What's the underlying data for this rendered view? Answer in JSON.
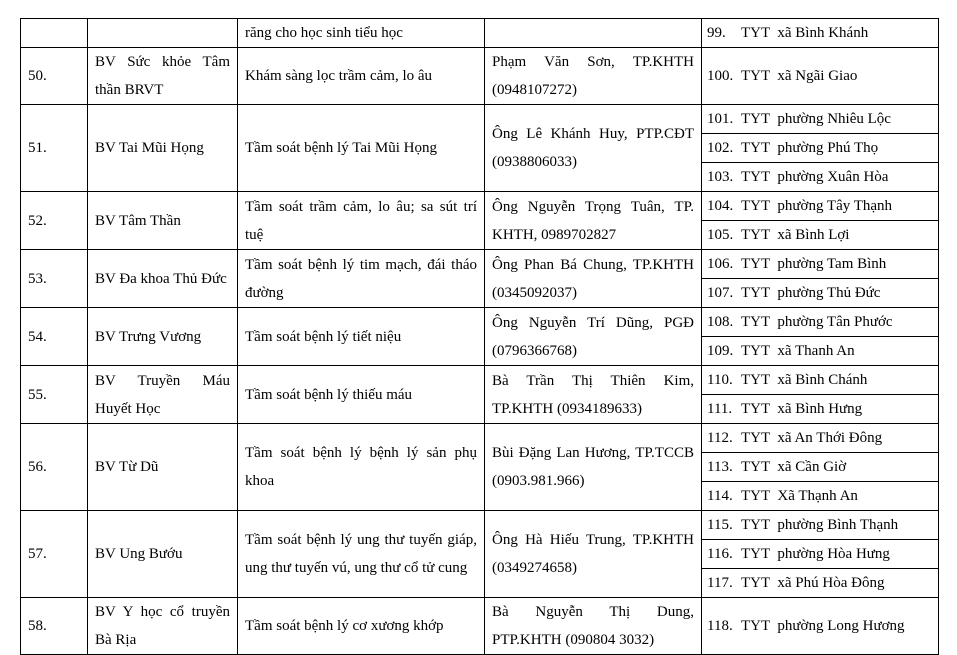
{
  "table": {
    "rows": [
      {
        "stt": "",
        "hospital": "",
        "service": "răng cho học sinh tiểu học",
        "contact": "",
        "stations": [
          {
            "num": "99.",
            "name": "TYT  xã Bình Khánh"
          }
        ]
      },
      {
        "stt": "50.",
        "hospital": "BV Sức khỏe Tâm thần BRVT",
        "service": "Khám sàng lọc trầm cảm, lo âu",
        "contact": "Phạm Văn Sơn, TP.KHTH (0948107272)",
        "stations": [
          {
            "num": "100.",
            "name": "TYT  xã Ngãi Giao"
          }
        ]
      },
      {
        "stt": "51.",
        "hospital": "BV Tai Mũi Họng",
        "service": "Tầm soát bệnh lý Tai Mũi Họng",
        "contact": "Ông Lê Khánh Huy, PTP.CĐT (0938806033)",
        "stations": [
          {
            "num": "101.",
            "name": "TYT  phường Nhiêu Lộc"
          },
          {
            "num": "102.",
            "name": "TYT  phường Phú Thọ"
          },
          {
            "num": "103.",
            "name": "TYT  phường Xuân Hòa"
          }
        ]
      },
      {
        "stt": "52.",
        "hospital": "BV Tâm Thần",
        "service": "Tầm soát trầm cảm, lo âu; sa sút trí tuệ",
        "contact": "Ông Nguyễn Trọng Tuân, TP. KHTH, 0989702827",
        "stations": [
          {
            "num": "104.",
            "name": "TYT  phường Tây Thạnh"
          },
          {
            "num": "105.",
            "name": "TYT  xã Bình Lợi"
          }
        ]
      },
      {
        "stt": "53.",
        "hospital": "BV Đa khoa Thủ Đức",
        "service": "Tầm soát bệnh lý tim mạch, đái tháo đường",
        "contact": "Ông Phan Bá Chung, TP.KHTH (0345092037)",
        "stations": [
          {
            "num": "106.",
            "name": "TYT  phường Tam Bình"
          },
          {
            "num": "107.",
            "name": "TYT  phường Thủ Đức"
          }
        ]
      },
      {
        "stt": "54.",
        "hospital": "BV Trưng Vương",
        "service": "Tầm soát bệnh lý tiết niệu",
        "contact": "Ông Nguyễn Trí Dũng, PGĐ (0796366768)",
        "stations": [
          {
            "num": "108.",
            "name": "TYT  phường Tân Phước"
          },
          {
            "num": "109.",
            "name": "TYT  xã Thanh An"
          }
        ]
      },
      {
        "stt": "55.",
        "hospital": "BV Truyền Máu Huyết Học",
        "service": "Tầm soát bệnh lý thiếu máu",
        "contact": "Bà Trần Thị Thiên Kim, TP.KHTH (0934189633)",
        "stations": [
          {
            "num": "110.",
            "name": "TYT  xã Bình Chánh"
          },
          {
            "num": "111.",
            "name": "TYT  xã Bình Hưng"
          }
        ]
      },
      {
        "stt": "56.",
        "hospital": "BV Từ Dũ",
        "service": "Tầm soát bệnh lý bệnh lý sản phụ khoa",
        "contact": "Bùi Đặng Lan Hương, TP.TCCB (0903.981.966)",
        "stations": [
          {
            "num": "112.",
            "name": "TYT  xã An Thới Đông"
          },
          {
            "num": "113.",
            "name": "TYT  xã Cần Giờ"
          },
          {
            "num": "114.",
            "name": "TYT  Xã Thạnh An"
          }
        ]
      },
      {
        "stt": "57.",
        "hospital": "BV Ung Bướu",
        "service": "Tầm soát bệnh lý ung thư tuyến giáp, ung thư tuyến vú, ung thư cổ tử cung",
        "contact": "Ông Hà Hiếu Trung, TP.KHTH (0349274658)",
        "stations": [
          {
            "num": "115.",
            "name": "TYT  phường Bình Thạnh"
          },
          {
            "num": "116.",
            "name": "TYT  phường Hòa Hưng"
          },
          {
            "num": "117.",
            "name": "TYT  xã Phú Hòa Đông"
          }
        ]
      },
      {
        "stt": "58.",
        "hospital": "BV Y học cổ truyền Bà Rịa",
        "service": "Tầm soát bệnh lý cơ xương khớp",
        "contact": "Bà Nguyễn Thị Dung, PTP.KHTH (090804 3032)",
        "stations": [
          {
            "num": "118.",
            "name": "TYT  phường Long Hương"
          }
        ]
      }
    ]
  }
}
